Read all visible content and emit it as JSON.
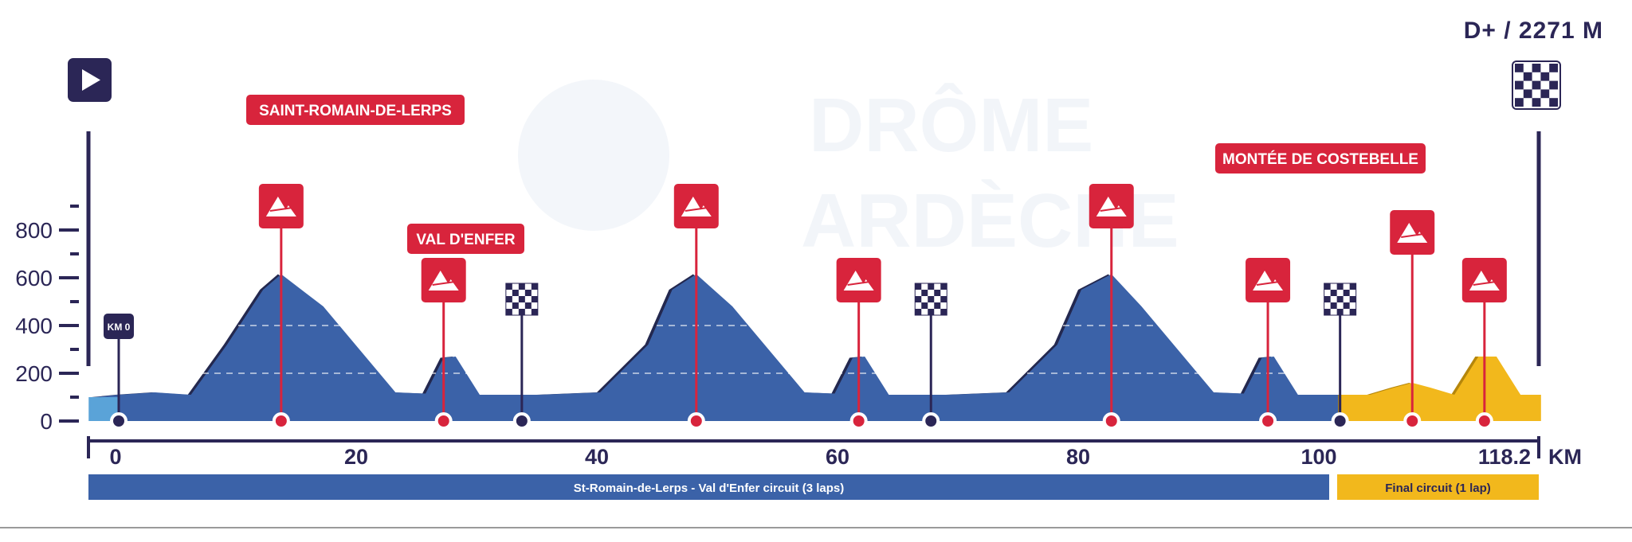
{
  "elevation_gain": "D+ / 2271 M",
  "watermark": {
    "line1": "DRÔME",
    "line2": "ARDÈCHE"
  },
  "km0_label": "KM 0",
  "climb_labels": {
    "saint_romain": "SAINT-ROMAIN-DE-LERPS",
    "val_denfer": "VAL D'ENFER",
    "costebelle": "MONTÉE DE COSTEBELLE"
  },
  "y_axis": {
    "ticks": [
      {
        "value": 0,
        "label": "0"
      },
      {
        "value": 200,
        "label": "200"
      },
      {
        "value": 400,
        "label": "400"
      },
      {
        "value": 600,
        "label": "600"
      },
      {
        "value": 800,
        "label": "800"
      }
    ]
  },
  "x_axis": {
    "unit": "KM",
    "ticks": [
      {
        "value": 0,
        "label": "0"
      },
      {
        "value": 20,
        "label": "20"
      },
      {
        "value": 40,
        "label": "40"
      },
      {
        "value": 60,
        "label": "60"
      },
      {
        "value": 80,
        "label": "80"
      },
      {
        "value": 100,
        "label": "100"
      },
      {
        "value": 118.2,
        "label": "118.2"
      }
    ]
  },
  "sections": [
    {
      "label": "St-Romain-de-Lerps - Val d'Enfer circuit (3 laps)",
      "color": "#3b62a8"
    },
    {
      "label": "Final circuit (1 lap)",
      "color": "#f2b81c"
    }
  ],
  "colors": {
    "profile": "#3b62a8",
    "profile_shadow": "#23284f",
    "final": "#f2b81c",
    "red": "#d8243c",
    "navy": "#2b2656",
    "start_segment": "#5aa3d8"
  },
  "chart_data": {
    "type": "area",
    "x_unit": "km",
    "y_unit": "m",
    "total_distance_km": 118.2,
    "ylim": [
      0,
      1000
    ],
    "elevation_gain_m": 2271,
    "profile": [
      [
        -2,
        100
      ],
      [
        0,
        110
      ],
      [
        3,
        120
      ],
      [
        6,
        110
      ],
      [
        9,
        320
      ],
      [
        12,
        550
      ],
      [
        13.5,
        615
      ],
      [
        17,
        480
      ],
      [
        20,
        300
      ],
      [
        23,
        120
      ],
      [
        25.5,
        115
      ],
      [
        27,
        265
      ],
      [
        28,
        270
      ],
      [
        30,
        110
      ],
      [
        35,
        110
      ],
      [
        40,
        120
      ],
      [
        44,
        320
      ],
      [
        46,
        550
      ],
      [
        48,
        615
      ],
      [
        51,
        480
      ],
      [
        54,
        300
      ],
      [
        57,
        120
      ],
      [
        59.5,
        115
      ],
      [
        61,
        265
      ],
      [
        62,
        270
      ],
      [
        64,
        110
      ],
      [
        69,
        110
      ],
      [
        74,
        120
      ],
      [
        78,
        320
      ],
      [
        80,
        550
      ],
      [
        82.5,
        615
      ],
      [
        85,
        480
      ],
      [
        88,
        300
      ],
      [
        91,
        120
      ],
      [
        93.5,
        115
      ],
      [
        95,
        265
      ],
      [
        96,
        270
      ],
      [
        98,
        110
      ],
      [
        101.6,
        110
      ],
      [
        104,
        110
      ],
      [
        106,
        140
      ],
      [
        107.5,
        160
      ],
      [
        109,
        140
      ],
      [
        111,
        110
      ],
      [
        113,
        270
      ],
      [
        114.5,
        270
      ],
      [
        116.5,
        110
      ],
      [
        118.2,
        110
      ]
    ],
    "circuit_end_km": 101.6,
    "final_circuit": {
      "from_km": 101.6,
      "to_km": 118.2
    },
    "km0_km": 0,
    "climbs": [
      {
        "km": 13.5,
        "labeled": "saint_romain",
        "icon_height": 900
      },
      {
        "km": 27,
        "labeled": "val_denfer",
        "icon_height": 590
      },
      {
        "km": 48,
        "labeled": "",
        "icon_height": 900
      },
      {
        "km": 61.5,
        "labeled": "",
        "icon_height": 590
      },
      {
        "km": 82.5,
        "labeled": "",
        "icon_height": 900
      },
      {
        "km": 95.5,
        "labeled": "",
        "icon_height": 590
      },
      {
        "km": 107.5,
        "labeled": "costebelle",
        "icon_height": 790
      },
      {
        "km": 113.5,
        "labeled": "",
        "icon_height": 590
      }
    ],
    "lap_finishes_km": [
      33.5,
      67.5,
      101.5
    ]
  }
}
